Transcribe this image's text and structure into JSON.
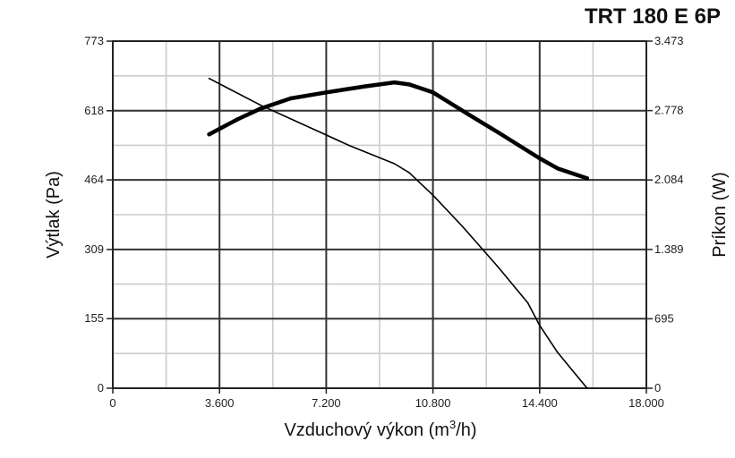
{
  "chart_data": {
    "type": "line",
    "title": "TRT 180 E 6P",
    "xlabel": {
      "prefix": "Vzduchový výkon (m",
      "sup": "3",
      "suffix": "/h)"
    },
    "ylabel_left": "Výtlak (Pa)",
    "ylabel_right": "Príkon (W)",
    "xlim": [
      0,
      18000
    ],
    "ylim_left": [
      0,
      773
    ],
    "ylim_right": [
      0,
      3473
    ],
    "x_tick_values": [
      0,
      3600,
      7200,
      10800,
      14400,
      18000
    ],
    "x_tick_labels": [
      "0",
      "3.600",
      "7.200",
      "10.800",
      "14.400",
      "18.000"
    ],
    "y_left_tick_values": [
      0,
      155,
      309,
      464,
      618,
      773
    ],
    "y_left_tick_labels": [
      "0",
      "155",
      "309",
      "464",
      "618",
      "773"
    ],
    "y_right_tick_values": [
      0,
      695,
      1389,
      2084,
      2778,
      3473
    ],
    "y_right_tick_labels": [
      "0",
      "695",
      "1.389",
      "2.084",
      "2.778",
      "3.473"
    ],
    "minor_grid_x_step": 1800,
    "minor_grid_y_count": 10,
    "grid": true,
    "series": [
      {
        "axis": "left",
        "style": "thin",
        "x": [
          3250,
          5000,
          7000,
          8000,
          9500,
          10000,
          10800,
          11800,
          13000,
          14000,
          14400,
          15000,
          15500,
          16000
        ],
        "y": [
          690,
          630,
          570,
          540,
          500,
          480,
          430,
          360,
          270,
          190,
          140,
          80,
          40,
          0
        ]
      },
      {
        "axis": "right",
        "style": "thick",
        "x": [
          3250,
          4200,
          5000,
          6000,
          7200,
          8500,
          9500,
          10000,
          10800,
          12000,
          13000,
          14400,
          15000,
          16000
        ],
        "y": [
          2540,
          2690,
          2800,
          2900,
          2960,
          3020,
          3060,
          3040,
          2960,
          2740,
          2560,
          2300,
          2200,
          2100
        ]
      }
    ],
    "colors": {
      "line": "#000000",
      "major_grid": "#333333",
      "minor_grid": "#cccccc"
    }
  }
}
